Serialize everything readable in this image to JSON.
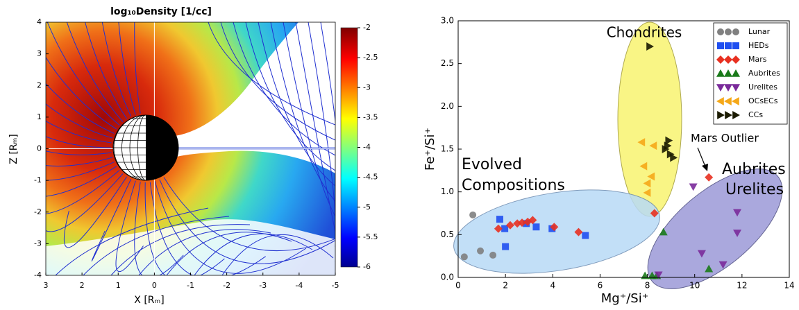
{
  "chart_data": [
    {
      "type": "field",
      "title": "log₁₀Density [1/cc]",
      "xlabel": "X [Rₘ]",
      "ylabel": "Z [Rₘ]",
      "xlim": [
        3,
        -5
      ],
      "xticks": [
        3,
        2,
        1,
        0,
        -1,
        -2,
        -3,
        -4,
        -5
      ],
      "ylim": [
        -4,
        4
      ],
      "yticks": [
        -4,
        -3,
        -2,
        -1,
        0,
        1,
        2,
        3,
        4
      ],
      "clim": [
        -6,
        -2
      ],
      "cticks": [
        -2,
        -2.5,
        -3,
        -3.5,
        -4,
        -4.5,
        -5,
        -5.5,
        -6
      ],
      "grid": true
    },
    {
      "type": "scatter",
      "xlabel": "Mg⁺/Si⁺",
      "ylabel": "Fe⁺/Si⁺",
      "xlim": [
        0,
        14
      ],
      "xticks": [
        0,
        2,
        4,
        6,
        8,
        10,
        12,
        14
      ],
      "ylim": [
        0,
        3
      ],
      "yticks": [
        {
          "value": 0,
          "label": "0.0"
        },
        {
          "value": 0.5,
          "label": "0.5"
        },
        {
          "value": 1,
          "label": "1.0"
        },
        {
          "value": 1.5,
          "label": "1.5"
        },
        {
          "value": 2,
          "label": "2.0"
        },
        {
          "value": 2.5,
          "label": "2.5"
        },
        {
          "value": 3,
          "label": "3.0"
        }
      ],
      "legend": "upper right",
      "annotations": [
        "Chondrites",
        "Evolved",
        "Compositions",
        "Mars Outlier",
        "Aubrites",
        "Urelites"
      ],
      "series": [
        {
          "name": "Lunar",
          "color": "#808080",
          "marker": "o",
          "x": [
            0.62,
            0.26,
            0.94,
            1.47
          ],
          "values": [
            0.73,
            0.24,
            0.31,
            0.26
          ]
        },
        {
          "name": "HEDs",
          "color": "#1f4ff0",
          "marker": "s",
          "x": [
            1.76,
            1.97,
            2.0,
            2.88,
            3.3,
            3.97,
            5.38
          ],
          "values": [
            0.68,
            0.57,
            0.36,
            0.63,
            0.59,
            0.57,
            0.49
          ]
        },
        {
          "name": "Mars",
          "color": "#e83020",
          "marker": "D",
          "x": [
            1.7,
            2.2,
            2.5,
            2.7,
            2.94,
            3.15,
            4.06,
            5.09,
            8.3,
            10.6
          ],
          "values": [
            0.57,
            0.61,
            0.63,
            0.64,
            0.65,
            0.67,
            0.59,
            0.53,
            0.75,
            1.17
          ]
        },
        {
          "name": "Aubrites",
          "color": "#1a7a1a",
          "marker": "^",
          "x": [
            8.68,
            7.9,
            8.2,
            8.4,
            10.6
          ],
          "values": [
            0.53,
            0.02,
            0.02,
            0.02,
            0.1
          ]
        },
        {
          "name": "Urelites",
          "color": "#7a2a9a",
          "marker": "v",
          "x": [
            9.94,
            11.8,
            11.8,
            10.3,
            11.2,
            8.47
          ],
          "values": [
            1.06,
            0.76,
            0.52,
            0.28,
            0.15,
            0.03
          ]
        },
        {
          "name": "OCsECs",
          "color": "#f5a818",
          "marker": "<",
          "x": [
            7.76,
            8.26,
            7.85,
            8.17,
            8.0,
            8.0
          ],
          "values": [
            1.58,
            1.54,
            1.3,
            1.18,
            1.1,
            0.99
          ]
        },
        {
          "name": "CCs",
          "color": "#1a1a00",
          "marker": ">",
          "x": [
            8.1,
            8.9,
            8.85,
            8.76,
            8.97,
            9.1
          ],
          "values": [
            2.7,
            1.6,
            1.54,
            1.5,
            1.44,
            1.4
          ]
        }
      ]
    }
  ]
}
